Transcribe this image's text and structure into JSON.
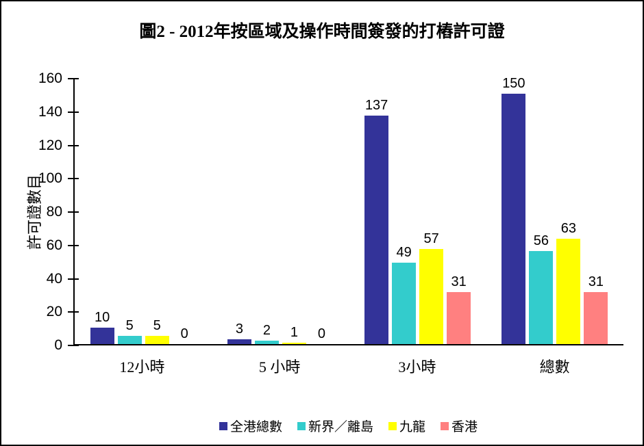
{
  "chart_data": {
    "type": "bar",
    "title": "圖2 - 2012年按區域及操作時間簽發的打樁許可證",
    "xlabel": "",
    "ylabel": "許可證數目",
    "ylim": [
      0,
      160
    ],
    "ytick_step": 20,
    "grid": false,
    "legend_position": "bottom",
    "categories": [
      "12小時",
      "5 小時",
      "3小時",
      "總數"
    ],
    "series": [
      {
        "name": "全港總數",
        "color": "#333399",
        "values": [
          10,
          3,
          137,
          150
        ]
      },
      {
        "name": "新界／離島",
        "color": "#33CCCC",
        "values": [
          5,
          2,
          49,
          56
        ]
      },
      {
        "name": "九龍",
        "color": "#FFFF00",
        "values": [
          5,
          1,
          57,
          63
        ]
      },
      {
        "name": "香港",
        "color": "#FF8080",
        "values": [
          0,
          0,
          31,
          31
        ]
      }
    ]
  }
}
